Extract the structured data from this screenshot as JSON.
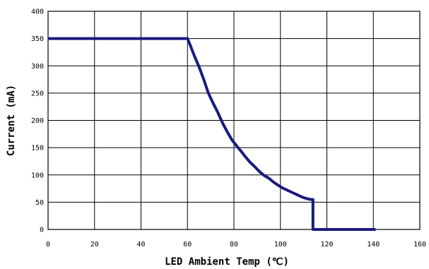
{
  "chart_data": {
    "type": "line",
    "title": "",
    "xlabel": "LED Ambient Temp (℃)",
    "ylabel": "Current (mA)",
    "xlim": [
      0,
      160
    ],
    "ylim": [
      0,
      400
    ],
    "xticks": [
      0,
      20,
      40,
      60,
      80,
      100,
      120,
      140,
      160
    ],
    "yticks": [
      0,
      50,
      100,
      150,
      200,
      250,
      300,
      350,
      400
    ],
    "grid": true,
    "legend": "none",
    "colors": {
      "series": "#1a1a80"
    },
    "series": [
      {
        "x": [
          0,
          60,
          61,
          63,
          65,
          67,
          69,
          71,
          73,
          75,
          77,
          79,
          81,
          83,
          85,
          87,
          89,
          91,
          93,
          95,
          97,
          99,
          101,
          103,
          105,
          107,
          109,
          111,
          113,
          114,
          114,
          114,
          116,
          120,
          130,
          141
        ],
        "y": [
          350,
          350,
          340,
          318,
          298,
          275,
          250,
          232,
          215,
          196,
          180,
          165,
          154,
          144,
          133,
          123,
          115,
          106,
          99,
          94,
          87,
          81,
          76,
          72,
          68,
          64,
          60,
          57,
          55,
          55,
          0,
          0,
          0,
          0,
          0,
          0
        ]
      }
    ]
  }
}
